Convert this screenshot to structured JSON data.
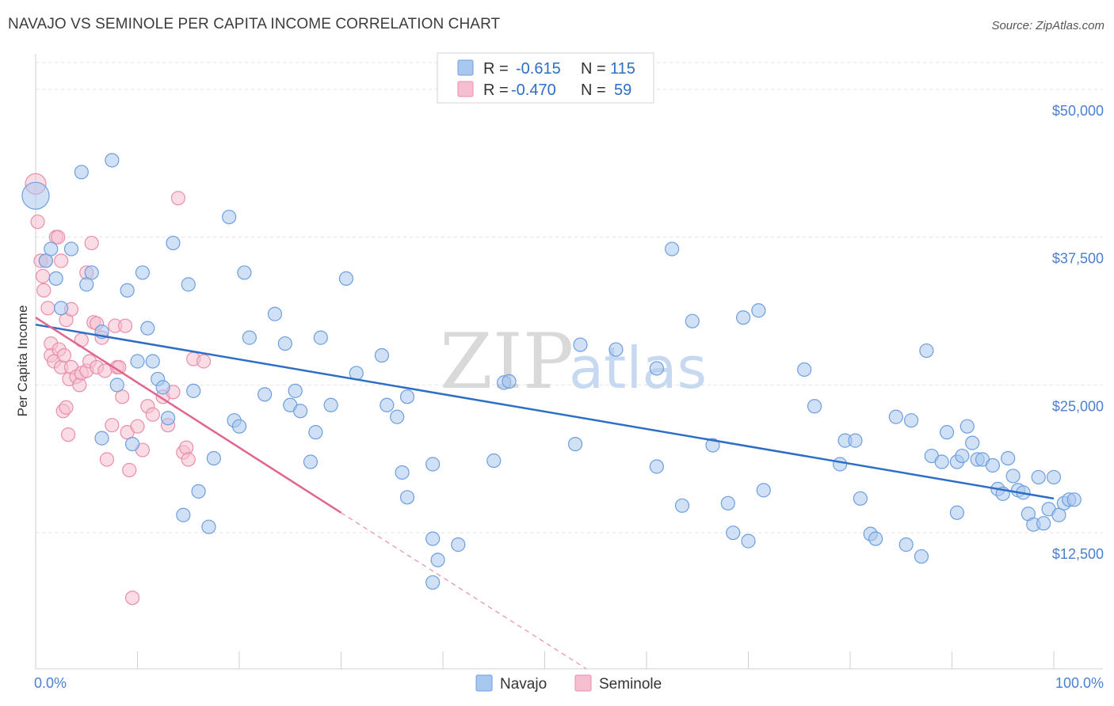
{
  "header": {
    "title": "NAVAJO VS SEMINOLE PER CAPITA INCOME CORRELATION CHART",
    "source": "Source: ZipAtlas.com"
  },
  "watermark": {
    "part1": "ZIP",
    "part2": "atlas"
  },
  "colors": {
    "navajo_fill": "#a9c8ef",
    "navajo_stroke": "#6d9ee0",
    "navajo_line": "#2e6ec6",
    "seminole_fill": "#f6bfd0",
    "seminole_stroke": "#e98eab",
    "seminole_line": "#e0668f",
    "tick_label": "#4a7fd1",
    "grid": "#e3e3e3"
  },
  "legend": {
    "rows": [
      {
        "r_label": "R =",
        "r_value": "-0.615",
        "n_label": "N =",
        "n_value": "115"
      },
      {
        "r_label": "R =",
        "r_value": "-0.470",
        "n_label": "N =",
        "n_value": "59"
      }
    ]
  },
  "bottom_legend": [
    "Navajo",
    "Seminole"
  ],
  "chart_data": {
    "type": "scatter",
    "title": "NAVAJO VS SEMINOLE PER CAPITA INCOME CORRELATION CHART",
    "xlabel": "",
    "ylabel": "Per Capita Income",
    "xlim": [
      0,
      100
    ],
    "ylim": [
      1000,
      53000
    ],
    "x_tick_labels": [
      "0.0%",
      "100.0%"
    ],
    "y_ticks": [
      12500,
      25000,
      37500,
      50000
    ],
    "y_tick_labels": [
      "$12,500",
      "$25,000",
      "$37,500",
      "$50,000"
    ],
    "legend_position": "top-center",
    "grid": true,
    "series": [
      {
        "name": "Navajo",
        "r": -0.615,
        "n": 115,
        "trend": {
          "x": [
            0,
            100
          ],
          "y": [
            30100,
            15400
          ]
        },
        "points": [
          [
            0,
            41000
          ],
          [
            1,
            35500
          ],
          [
            1.5,
            36500
          ],
          [
            2,
            34000
          ],
          [
            2.5,
            31500
          ],
          [
            3.5,
            36500
          ],
          [
            4.5,
            43000
          ],
          [
            5,
            33500
          ],
          [
            5.5,
            34500
          ],
          [
            6.5,
            20500
          ],
          [
            6.5,
            29500
          ],
          [
            7.5,
            44000
          ],
          [
            8,
            25000
          ],
          [
            9,
            33000
          ],
          [
            9.5,
            20000
          ],
          [
            10,
            27000
          ],
          [
            10.5,
            34500
          ],
          [
            11,
            29800
          ],
          [
            11.5,
            27000
          ],
          [
            12,
            25500
          ],
          [
            12.5,
            24800
          ],
          [
            13,
            22200
          ],
          [
            13.5,
            37000
          ],
          [
            14.5,
            14000
          ],
          [
            15,
            33500
          ],
          [
            15.5,
            24500
          ],
          [
            16,
            16000
          ],
          [
            17,
            13000
          ],
          [
            17.5,
            18800
          ],
          [
            19,
            39200
          ],
          [
            19.5,
            22000
          ],
          [
            20,
            21500
          ],
          [
            20.5,
            34500
          ],
          [
            21,
            29000
          ],
          [
            22.5,
            24200
          ],
          [
            23.5,
            31000
          ],
          [
            24.5,
            28500
          ],
          [
            25,
            23300
          ],
          [
            25.5,
            24500
          ],
          [
            26,
            22800
          ],
          [
            27,
            18500
          ],
          [
            27.5,
            21000
          ],
          [
            28,
            29000
          ],
          [
            29,
            23300
          ],
          [
            30.5,
            34000
          ],
          [
            31.5,
            26000
          ],
          [
            34,
            27500
          ],
          [
            34.5,
            23300
          ],
          [
            35.5,
            22300
          ],
          [
            36,
            17600
          ],
          [
            36.5,
            24000
          ],
          [
            36.5,
            15500
          ],
          [
            39,
            12000
          ],
          [
            39,
            18300
          ],
          [
            39.5,
            10200
          ],
          [
            39,
            8300
          ],
          [
            41.5,
            11500
          ],
          [
            45,
            18600
          ],
          [
            46,
            25200
          ],
          [
            46.5,
            25300
          ],
          [
            53,
            20000
          ],
          [
            53.5,
            28400
          ],
          [
            57,
            28000
          ],
          [
            61,
            26400
          ],
          [
            61,
            18100
          ],
          [
            62.5,
            36500
          ],
          [
            63.5,
            14800
          ],
          [
            64.5,
            30400
          ],
          [
            66.5,
            19900
          ],
          [
            68,
            15000
          ],
          [
            68.5,
            12500
          ],
          [
            69.5,
            30700
          ],
          [
            70,
            11800
          ],
          [
            71,
            31300
          ],
          [
            71.5,
            16100
          ],
          [
            75.5,
            26300
          ],
          [
            76.5,
            23200
          ],
          [
            79,
            18300
          ],
          [
            79.5,
            20300
          ],
          [
            80.5,
            20300
          ],
          [
            81,
            15400
          ],
          [
            82,
            12400
          ],
          [
            82.5,
            12000
          ],
          [
            84.5,
            22300
          ],
          [
            85.5,
            11500
          ],
          [
            86,
            22000
          ],
          [
            87,
            10500
          ],
          [
            87.5,
            27900
          ],
          [
            88,
            19000
          ],
          [
            89,
            18500
          ],
          [
            89.5,
            21000
          ],
          [
            90.5,
            14200
          ],
          [
            90.5,
            18500
          ],
          [
            91,
            19000
          ],
          [
            91.5,
            21500
          ],
          [
            92,
            20100
          ],
          [
            92.5,
            18700
          ],
          [
            93,
            18700
          ],
          [
            94,
            18200
          ],
          [
            94.5,
            16200
          ],
          [
            95,
            15800
          ],
          [
            95.5,
            18800
          ],
          [
            96,
            17300
          ],
          [
            96.5,
            16100
          ],
          [
            97,
            15900
          ],
          [
            97.5,
            14100
          ],
          [
            98,
            13200
          ],
          [
            98.5,
            17200
          ],
          [
            99,
            13300
          ],
          [
            99.5,
            14500
          ],
          [
            100,
            17200
          ],
          [
            100.5,
            14000
          ],
          [
            101,
            15000
          ],
          [
            101.5,
            15300
          ],
          [
            102,
            15300
          ]
        ]
      },
      {
        "name": "Seminole",
        "r": -0.47,
        "n": 59,
        "trend": {
          "x": [
            0,
            30
          ],
          "y": [
            30700,
            14200
          ]
        },
        "trend_extension": {
          "x": [
            30,
            55
          ],
          "y": [
            14200,
            500
          ]
        },
        "points": [
          [
            0,
            42000
          ],
          [
            0.2,
            38800
          ],
          [
            0.5,
            35500
          ],
          [
            0.7,
            34200
          ],
          [
            0.8,
            33000
          ],
          [
            1,
            35500
          ],
          [
            1.2,
            31500
          ],
          [
            1.5,
            28500
          ],
          [
            1.5,
            27500
          ],
          [
            1.8,
            27000
          ],
          [
            2,
            37500
          ],
          [
            2.2,
            37500
          ],
          [
            2.3,
            28000
          ],
          [
            2.5,
            26500
          ],
          [
            2.5,
            35500
          ],
          [
            2.7,
            22800
          ],
          [
            2.8,
            27500
          ],
          [
            3,
            30500
          ],
          [
            3,
            23100
          ],
          [
            3.2,
            20800
          ],
          [
            3.3,
            25500
          ],
          [
            3.5,
            31400
          ],
          [
            3.5,
            26500
          ],
          [
            4,
            25700
          ],
          [
            4.3,
            25000
          ],
          [
            4.5,
            26000
          ],
          [
            4.5,
            28800
          ],
          [
            5,
            26200
          ],
          [
            5,
            34500
          ],
          [
            5.3,
            27000
          ],
          [
            5.5,
            37000
          ],
          [
            5.7,
            30300
          ],
          [
            6,
            26500
          ],
          [
            6,
            30200
          ],
          [
            6.5,
            29000
          ],
          [
            6.8,
            26200
          ],
          [
            7,
            18700
          ],
          [
            7.5,
            21600
          ],
          [
            7.8,
            30000
          ],
          [
            8,
            26500
          ],
          [
            8.2,
            26500
          ],
          [
            8.5,
            24000
          ],
          [
            8.8,
            30000
          ],
          [
            9,
            21000
          ],
          [
            9.2,
            17800
          ],
          [
            9.5,
            7000
          ],
          [
            10,
            21500
          ],
          [
            10.5,
            19500
          ],
          [
            11,
            23200
          ],
          [
            11.5,
            22500
          ],
          [
            12.5,
            24000
          ],
          [
            13,
            21600
          ],
          [
            13.5,
            24400
          ],
          [
            14,
            40800
          ],
          [
            14.5,
            19300
          ],
          [
            14.8,
            19700
          ],
          [
            15,
            18700
          ],
          [
            15.5,
            27200
          ],
          [
            16.5,
            27000
          ]
        ]
      }
    ]
  }
}
